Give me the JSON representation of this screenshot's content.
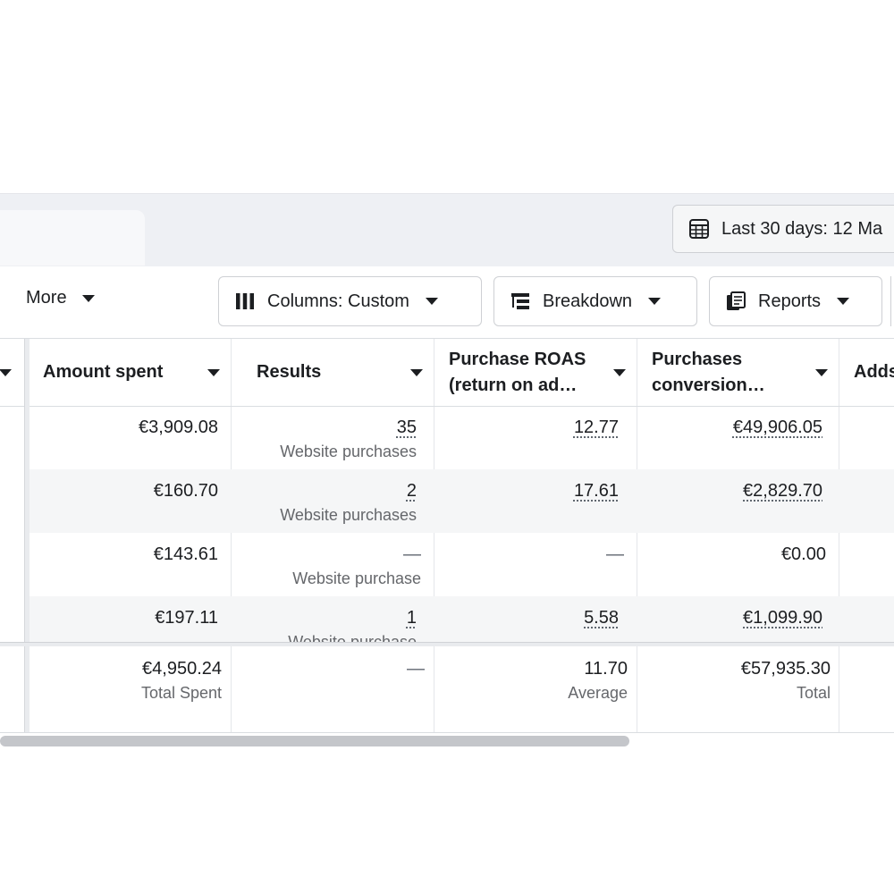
{
  "date_range": {
    "label": "Last 30 days: 12 Ma"
  },
  "toolbar": {
    "more_label": "More",
    "columns_label": "Columns: Custom",
    "breakdown_label": "Breakdown",
    "reports_label": "Reports"
  },
  "table": {
    "columns": [
      {
        "label": "Amount spent"
      },
      {
        "label": "Results"
      },
      {
        "label": "Purchase ROAS (return on ad…"
      },
      {
        "label": "Purchases conversion…"
      },
      {
        "label": "Adds"
      }
    ],
    "rows": [
      {
        "amount": "€3,909.08",
        "results": "35",
        "results_sub": "Website purchases",
        "roas": "12.77",
        "conv": "€49,906.05"
      },
      {
        "amount": "€160.70",
        "results": "2",
        "results_sub": "Website purchases",
        "roas": "17.61",
        "conv": "€2,829.70"
      },
      {
        "amount": "€143.61",
        "results": "—",
        "results_sub": "Website purchase",
        "roas": "—",
        "conv": "€0.00"
      },
      {
        "amount": "€197.11",
        "results": "1",
        "results_sub": "Website purchase",
        "roas": "5.58",
        "conv": "€1,099.90"
      }
    ],
    "footer": {
      "amount": "€4,950.24",
      "amount_sub": "Total Spent",
      "results": "—",
      "roas": "11.70",
      "roas_sub": "Average",
      "conv": "€57,935.30",
      "conv_sub": "Total"
    }
  },
  "icons": {
    "date": "calendar-icon",
    "columns": "columns-icon",
    "breakdown": "breakdown-icon",
    "reports": "reports-icon"
  }
}
